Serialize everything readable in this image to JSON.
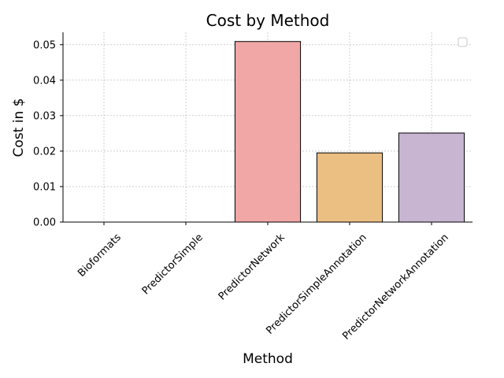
{
  "chart_data": {
    "type": "bar",
    "title": "Cost by Method",
    "xlabel": "Method",
    "ylabel": "Cost in $",
    "categories": [
      "Bioformats",
      "PredictorSimple",
      "PredictorNetwork",
      "PredictorSimpleAnnotation",
      "PredictorNetworkAnnotation"
    ],
    "values": [
      0,
      0,
      0.0509,
      0.0195,
      0.0251
    ],
    "colors": [
      "#a6cee3",
      "#b2df8a",
      "#f1a7a6",
      "#ebbe82",
      "#c7b5d2"
    ],
    "yticks": [
      "0.00",
      "0.01",
      "0.02",
      "0.03",
      "0.04",
      "0.05"
    ],
    "ylim": [
      0,
      0.0535
    ],
    "grid": true,
    "legend": "top-right, empty"
  }
}
